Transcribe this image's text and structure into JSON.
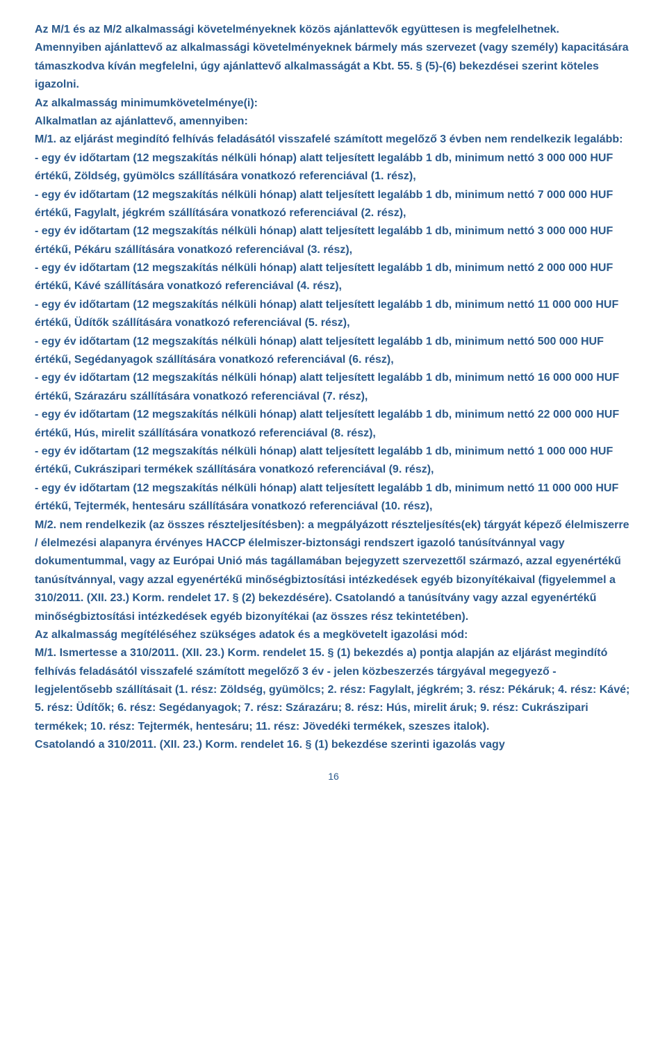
{
  "document": {
    "text_color": "#2b5a8c",
    "background_color": "#ffffff",
    "font_size": 16,
    "font_weight": 600,
    "page_number": "16",
    "paragraphs": [
      "Az M/1 és az M/2 alkalmassági követelményeknek közös ajánlattevők együttesen is megfelelhetnek.",
      "Amennyiben ajánlattevő az alkalmassági követelményeknek bármely más szervezet (vagy személy) kapacitására támaszkodva kíván megfelelni, úgy ajánlattevő alkalmasságát a Kbt. 55. § (5)-(6) bekezdései szerint köteles igazolni.",
      "Az alkalmasság minimumkövetelménye(i):",
      "Alkalmatlan az ajánlattevő, amennyiben:",
      "M/1. az eljárást megindító felhívás feladásától visszafelé számított megelőző 3 évben nem rendelkezik legalább:",
      "- egy év időtartam (12 megszakítás nélküli hónap) alatt teljesített legalább 1 db, minimum nettó 3 000 000 HUF értékű, Zöldség, gyümölcs szállítására vonatkozó referenciával (1. rész),",
      "- egy év időtartam (12 megszakítás nélküli hónap) alatt teljesített legalább 1 db, minimum nettó 7 000 000 HUF értékű, Fagylalt, jégkrém szállítására vonatkozó referenciával (2. rész),",
      "- egy év időtartam (12 megszakítás nélküli hónap) alatt teljesített legalább 1 db, minimum nettó 3 000 000 HUF értékű, Pékáru szállítására vonatkozó referenciával (3. rész),",
      "- egy év időtartam (12 megszakítás nélküli hónap) alatt teljesített legalább 1 db, minimum nettó 2 000 000 HUF értékű, Kávé szállítására vonatkozó referenciával (4. rész),",
      "- egy év időtartam (12 megszakítás nélküli hónap) alatt teljesített legalább 1 db, minimum nettó 11 000 000 HUF értékű, Üdítők szállítására vonatkozó referenciával (5. rész),",
      "- egy év időtartam (12 megszakítás nélküli hónap) alatt teljesített legalább 1 db, minimum nettó 500 000 HUF értékű, Segédanyagok szállítására vonatkozó referenciával (6. rész),",
      "- egy év időtartam (12 megszakítás nélküli hónap) alatt teljesített legalább 1 db, minimum nettó 16 000 000 HUF értékű, Szárazáru szállítására vonatkozó referenciával (7. rész),",
      "- egy év időtartam (12 megszakítás nélküli hónap) alatt teljesített legalább 1 db, minimum nettó 22 000 000 HUF értékű, Hús, mirelit szállítására vonatkozó referenciával (8. rész),",
      "- egy év időtartam (12 megszakítás nélküli hónap) alatt teljesített legalább 1 db, minimum nettó 1 000 000 HUF értékű, Cukrászipari termékek szállítására vonatkozó referenciával (9. rész),",
      "- egy év időtartam (12 megszakítás nélküli hónap) alatt teljesített legalább 1 db, minimum nettó 11 000 000 HUF értékű, Tejtermék, hentesáru szállítására vonatkozó referenciával (10. rész),",
      "M/2. nem rendelkezik (az összes részteljesítésben): a megpályázott részteljesítés(ek) tárgyát képező élelmiszerre / élelmezési alapanyra érvényes HACCP élelmiszer-biztonsági rendszert igazoló tanúsítvánnyal vagy dokumentummal, vagy az Európai Unió más tagállamában bejegyzett szervezettől származó, azzal egyenértékű tanúsítvánnyal, vagy azzal egyenértékű minőségbiztosítási intézkedések egyéb bizonyítékaival (figyelemmel a 310/2011. (XII. 23.) Korm. rendelet 17. § (2) bekezdésére). Csatolandó a tanúsítvány vagy azzal egyenértékű minőségbiztosítási intézkedések egyéb bizonyítékai (az összes rész tekintetében).",
      "Az alkalmasság megítéléséhez szükséges adatok és a megkövetelt igazolási mód:",
      "M/1. Ismertesse a 310/2011. (XII. 23.) Korm. rendelet 15. § (1) bekezdés a) pontja alapján az eljárást megindító felhívás feladásától visszafelé számított megelőző 3 év - jelen közbeszerzés tárgyával megegyező - legjelentősebb szállításait (1. rész: Zöldség, gyümölcs; 2. rész: Fagylalt, jégkrém; 3. rész: Pékáruk; 4. rész: Kávé; 5. rész: Üdítők; 6. rész: Segédanyagok; 7. rész: Szárazáru; 8. rész: Hús, mirelit áruk; 9. rész: Cukrászipari termékek; 10. rész: Tejtermék, hentesáru; 11. rész: Jövedéki termékek, szeszes italok).",
      "Csatolandó a 310/2011. (XII. 23.) Korm. rendelet 16. § (1) bekezdése szerinti igazolás vagy"
    ]
  }
}
